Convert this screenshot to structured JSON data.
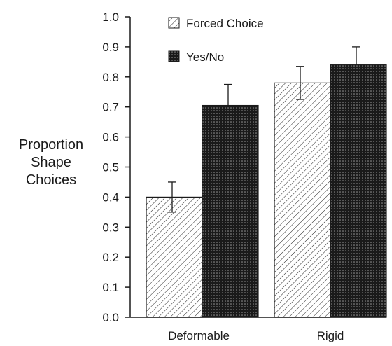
{
  "chart_data": {
    "type": "bar",
    "ylabel_lines": [
      "Proportion",
      "Shape",
      "Choices"
    ],
    "categories": [
      "Deformable",
      "Rigid"
    ],
    "ylim": [
      0.0,
      1.0
    ],
    "yticks": [
      "0.0",
      "0.1",
      "0.2",
      "0.3",
      "0.4",
      "0.5",
      "0.6",
      "0.7",
      "0.8",
      "0.9",
      "1.0"
    ],
    "grid": false,
    "legend_position": "top-left",
    "series": [
      {
        "name": "Forced Choice",
        "values": [
          0.4,
          0.78
        ],
        "error": [
          0.05,
          0.055
        ],
        "pattern": "diagonal-hatch"
      },
      {
        "name": "Yes/No",
        "values": [
          0.705,
          0.84
        ],
        "error": [
          0.07,
          0.06
        ],
        "pattern": "dark-dots"
      }
    ]
  }
}
